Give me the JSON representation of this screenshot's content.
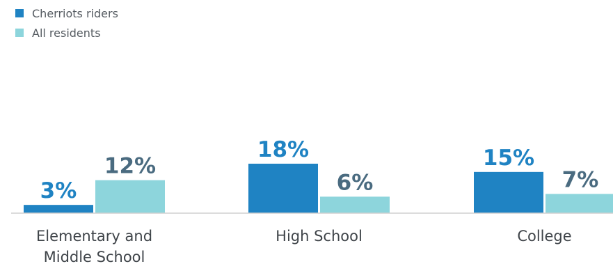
{
  "chart_data": {
    "type": "bar",
    "categories": [
      [
        "Elementary and",
        "Middle School"
      ],
      [
        "High School"
      ],
      [
        "College"
      ]
    ],
    "series": [
      {
        "name": "Cherriots riders",
        "color": "#1f83c3",
        "label_color": "#1f83c3",
        "values": [
          3,
          18,
          15
        ],
        "labels": [
          "3%",
          "18%",
          "15%"
        ]
      },
      {
        "name": "All residents",
        "color": "#8dd5dc",
        "label_color": "#4a6b80",
        "values": [
          12,
          6,
          7
        ],
        "labels": [
          "12%",
          "6%",
          "7%"
        ]
      }
    ],
    "ylim": [
      0,
      18
    ],
    "legend_position": "top-left",
    "grid": false,
    "baseline_color": "#d0d0d0"
  }
}
